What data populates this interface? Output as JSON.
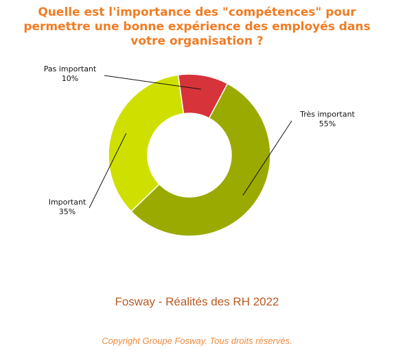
{
  "chart_data": {
    "type": "pie",
    "donut": true,
    "title": [
      "Quelle est l'importance des \"compétences\" pour",
      "permettre une bonne expérience des employés dans",
      "votre organisation ?"
    ],
    "slices": [
      {
        "label": "Très important",
        "value": 55,
        "value_label": "55%",
        "color": "#9aaa00"
      },
      {
        "label": "Important",
        "value": 35,
        "value_label": "35%",
        "color": "#cfe000"
      },
      {
        "label": "Pas important",
        "value": 10,
        "value_label": "10%",
        "color": "#d6333a"
      }
    ]
  },
  "footer": {
    "source": "Fosway - Réalités des RH 2022",
    "copyright": "Copyright Groupe Fosway. Tous droits réservés."
  }
}
